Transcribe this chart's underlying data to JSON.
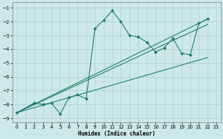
{
  "xlabel": "Humidex (Indice chaleur)",
  "bg_color": "#cce8e8",
  "line_color": "#1a7a6e",
  "grid_color": "#b0cccc",
  "xlim": [
    -0.5,
    23.5
  ],
  "ylim": [
    -9.3,
    -0.6
  ],
  "yticks": [
    -1,
    -2,
    -3,
    -4,
    -5,
    -6,
    -7,
    -8,
    -9
  ],
  "xticks": [
    0,
    1,
    2,
    3,
    4,
    5,
    6,
    7,
    8,
    9,
    10,
    11,
    12,
    13,
    14,
    15,
    16,
    17,
    18,
    19,
    20,
    21,
    22,
    23
  ],
  "series1_x": [
    0,
    2,
    3,
    4,
    5,
    6,
    7,
    8,
    9,
    10,
    11,
    12,
    13,
    14,
    15,
    16,
    17,
    18,
    19,
    20,
    21,
    22
  ],
  "series1_y": [
    -8.6,
    -7.9,
    -8.0,
    -7.9,
    -8.7,
    -7.5,
    -7.3,
    -7.6,
    -2.5,
    -1.9,
    -1.2,
    -2.0,
    -3.0,
    -3.1,
    -3.5,
    -4.2,
    -3.9,
    -3.2,
    -4.3,
    -4.4,
    -2.1,
    -1.8
  ],
  "series2_x": [
    0,
    22
  ],
  "series2_y": [
    -8.6,
    -1.8
  ],
  "series3_x": [
    0,
    22
  ],
  "series3_y": [
    -8.6,
    -2.2
  ],
  "series4_x": [
    0,
    22
  ],
  "series4_y": [
    -8.6,
    -4.6
  ]
}
